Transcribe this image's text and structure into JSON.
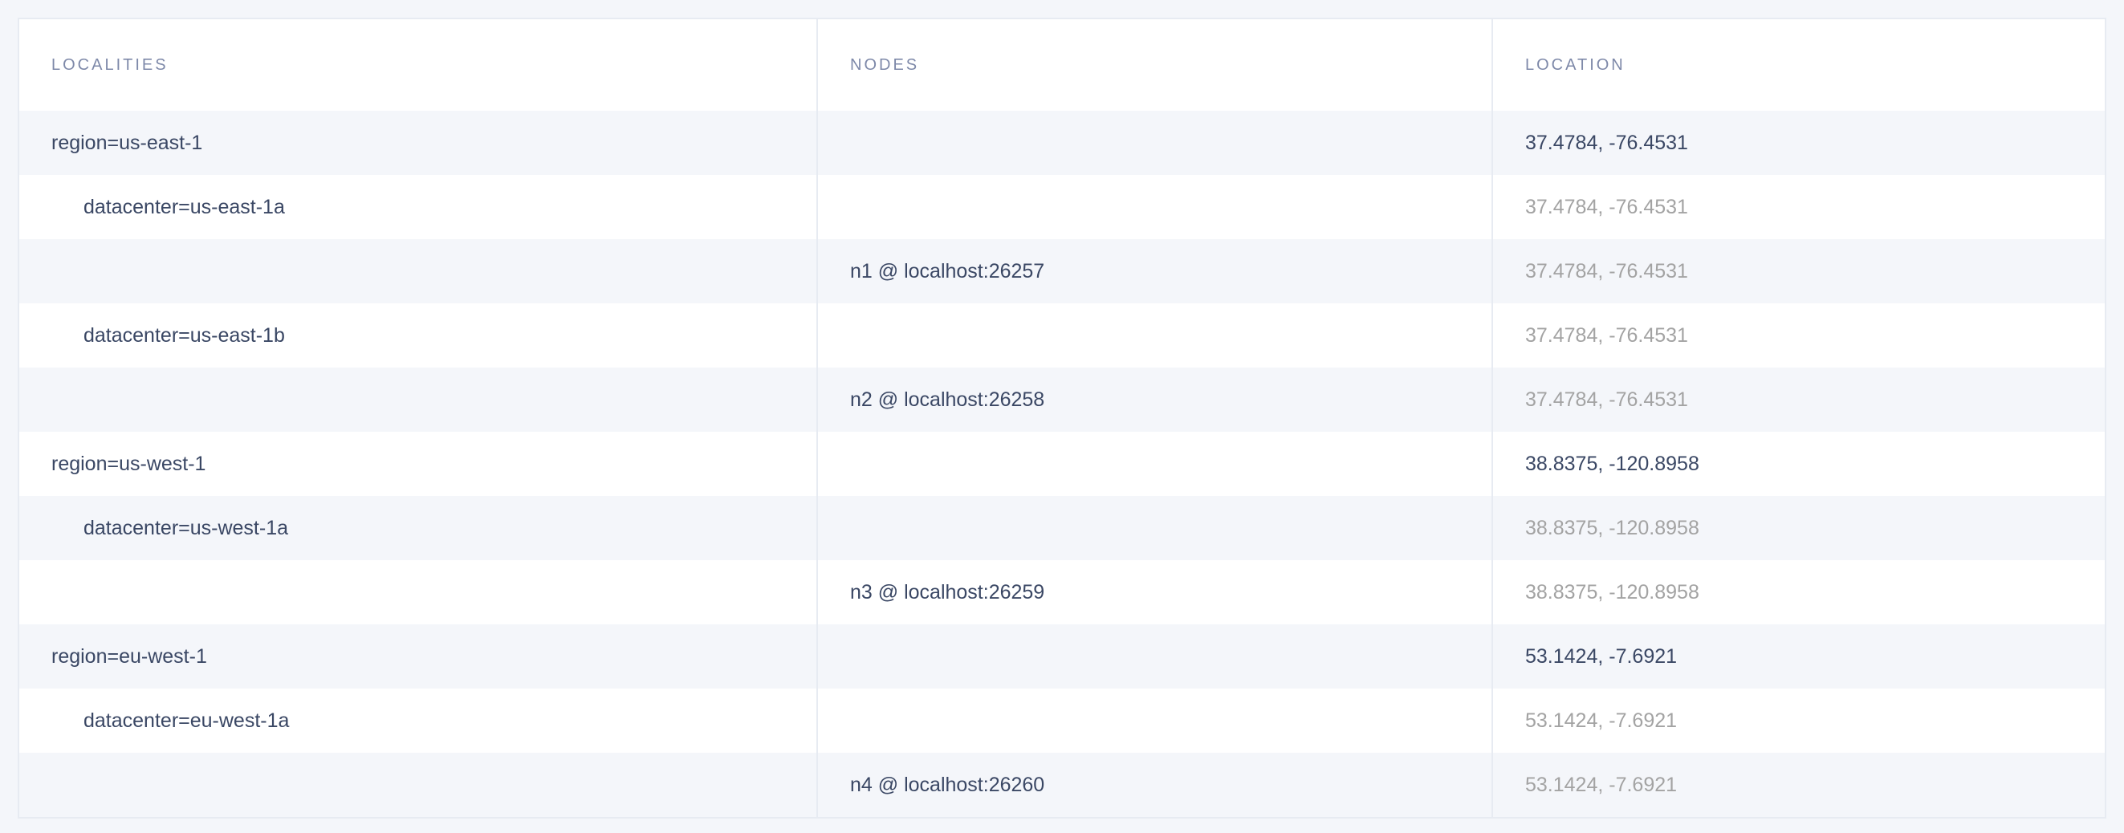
{
  "table": {
    "headers": [
      "LOCALITIES",
      "NODES",
      "LOCATION"
    ],
    "rows": [
      {
        "locality": "region=us-east-1",
        "level": 0,
        "node": "",
        "location": "37.4784, -76.4531",
        "location_muted": false
      },
      {
        "locality": "datacenter=us-east-1a",
        "level": 1,
        "node": "",
        "location": "37.4784, -76.4531",
        "location_muted": true
      },
      {
        "locality": "",
        "level": 2,
        "node": "n1 @ localhost:26257",
        "location": "37.4784, -76.4531",
        "location_muted": true
      },
      {
        "locality": "datacenter=us-east-1b",
        "level": 1,
        "node": "",
        "location": "37.4784, -76.4531",
        "location_muted": true
      },
      {
        "locality": "",
        "level": 2,
        "node": "n2 @ localhost:26258",
        "location": "37.4784, -76.4531",
        "location_muted": true
      },
      {
        "locality": "region=us-west-1",
        "level": 0,
        "node": "",
        "location": "38.8375, -120.8958",
        "location_muted": false
      },
      {
        "locality": "datacenter=us-west-1a",
        "level": 1,
        "node": "",
        "location": "38.8375, -120.8958",
        "location_muted": true
      },
      {
        "locality": "",
        "level": 2,
        "node": "n3 @ localhost:26259",
        "location": "38.8375, -120.8958",
        "location_muted": true
      },
      {
        "locality": "region=eu-west-1",
        "level": 0,
        "node": "",
        "location": "53.1424, -7.6921",
        "location_muted": false
      },
      {
        "locality": "datacenter=eu-west-1a",
        "level": 1,
        "node": "",
        "location": "53.1424, -7.6921",
        "location_muted": true
      },
      {
        "locality": "",
        "level": 2,
        "node": "n4 @ localhost:26260",
        "location": "53.1424, -7.6921",
        "location_muted": true
      }
    ]
  }
}
